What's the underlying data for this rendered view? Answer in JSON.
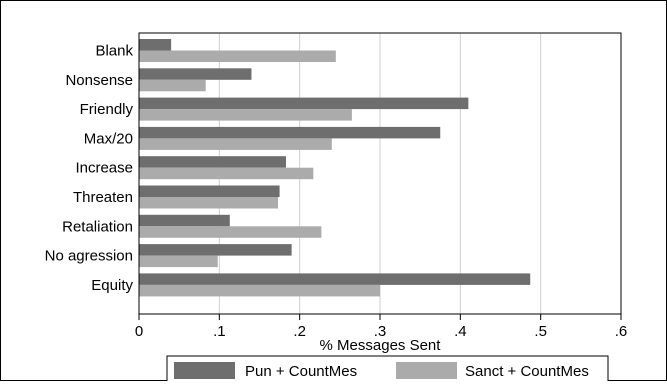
{
  "chart_data": {
    "type": "bar",
    "orientation": "horizontal",
    "categories": [
      "Blank",
      "Nonsense",
      "Friendly",
      "Max/20",
      "Increase",
      "Threaten",
      "Retaliation",
      "No agression",
      "Equity"
    ],
    "series": [
      {
        "name": "Pun + CountMes",
        "color": "#6e6e6e",
        "values": [
          0.04,
          0.14,
          0.41,
          0.375,
          0.183,
          0.175,
          0.113,
          0.19,
          0.487
        ]
      },
      {
        "name": "Sanct + CountMes",
        "color": "#ababab",
        "values": [
          0.245,
          0.083,
          0.265,
          0.24,
          0.217,
          0.173,
          0.227,
          0.098,
          0.3
        ]
      }
    ],
    "xlabel": "% Messages Sent",
    "ylabel": "",
    "title": "",
    "xlim": [
      0,
      0.6
    ],
    "xticks": [
      0,
      0.1,
      0.2,
      0.3,
      0.4,
      0.5,
      0.6
    ],
    "xtick_labels": [
      "0",
      ".1",
      ".2",
      ".3",
      ".4",
      ".5",
      ".6"
    ],
    "grid": "vertical",
    "legend_position": "bottom"
  }
}
